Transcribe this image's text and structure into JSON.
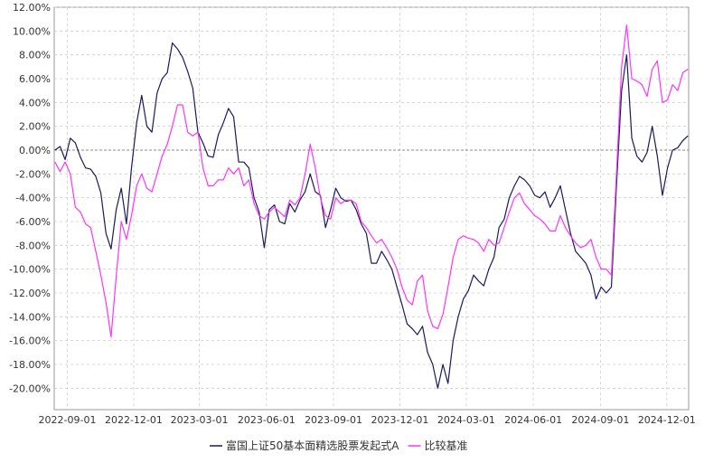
{
  "chart_data": {
    "type": "line",
    "y_ticks": [
      "12.00%",
      "10.00%",
      "8.00%",
      "6.00%",
      "4.00%",
      "2.00%",
      "0.00%",
      "-2.00%",
      "-4.00%",
      "-6.00%",
      "-8.00%",
      "-10.00%",
      "-12.00%",
      "-14.00%",
      "-16.00%",
      "-18.00%",
      "-20.00%"
    ],
    "ylim": [
      -21.8,
      12
    ],
    "x_ticks": [
      "2022-09-01",
      "2022-12-01",
      "2023-03-01",
      "2023-06-01",
      "2023-09-01",
      "2023-12-01",
      "2024-03-01",
      "2024-06-01",
      "2024-09-01",
      "2024-12-01"
    ],
    "grid": true,
    "legend_position": "bottom",
    "series": [
      {
        "name": "富国上证50基本面精选股票发起式A",
        "color": "#1a1a5e",
        "values": [
          [
            "2022-08-15",
            0
          ],
          [
            "2022-08-22",
            0.3
          ],
          [
            "2022-08-29",
            -0.8
          ],
          [
            "2022-09-05",
            1
          ],
          [
            "2022-09-12",
            0.6
          ],
          [
            "2022-09-19",
            -0.6
          ],
          [
            "2022-09-26",
            -1.5
          ],
          [
            "2022-10-03",
            -1.6
          ],
          [
            "2022-10-10",
            -2.2
          ],
          [
            "2022-10-17",
            -3.6
          ],
          [
            "2022-10-24",
            -7
          ],
          [
            "2022-10-31",
            -8.3
          ],
          [
            "2022-11-07",
            -5
          ],
          [
            "2022-11-14",
            -3.2
          ],
          [
            "2022-11-21",
            -6.2
          ],
          [
            "2022-11-28",
            -1.5
          ],
          [
            "2022-12-05",
            2.3
          ],
          [
            "2022-12-12",
            4.6
          ],
          [
            "2022-12-19",
            2
          ],
          [
            "2022-12-26",
            1.5
          ],
          [
            "2023-01-02",
            4.8
          ],
          [
            "2023-01-09",
            6
          ],
          [
            "2023-01-16",
            6.5
          ],
          [
            "2023-01-23",
            9
          ],
          [
            "2023-01-30",
            8.5
          ],
          [
            "2023-02-06",
            7.8
          ],
          [
            "2023-02-13",
            6.6
          ],
          [
            "2023-02-20",
            5.2
          ],
          [
            "2023-02-27",
            1.5
          ],
          [
            "2023-03-06",
            0.6
          ],
          [
            "2023-03-13",
            -0.5
          ],
          [
            "2023-03-20",
            -0.6
          ],
          [
            "2023-03-27",
            1.3
          ],
          [
            "2023-04-03",
            2.3
          ],
          [
            "2023-04-10",
            3.5
          ],
          [
            "2023-04-17",
            2.8
          ],
          [
            "2023-04-24",
            -1
          ],
          [
            "2023-05-01",
            -1
          ],
          [
            "2023-05-08",
            -1.5
          ],
          [
            "2023-05-15",
            -4
          ],
          [
            "2023-05-22",
            -5.2
          ],
          [
            "2023-05-29",
            -8.2
          ],
          [
            "2023-06-05",
            -5
          ],
          [
            "2023-06-12",
            -4.6
          ],
          [
            "2023-06-19",
            -6
          ],
          [
            "2023-06-26",
            -6.2
          ],
          [
            "2023-07-03",
            -4.5
          ],
          [
            "2023-07-10",
            -5.2
          ],
          [
            "2023-07-17",
            -4.2
          ],
          [
            "2023-07-24",
            -3.5
          ],
          [
            "2023-07-31",
            -2
          ],
          [
            "2023-08-07",
            -3.5
          ],
          [
            "2023-08-14",
            -3.8
          ],
          [
            "2023-08-21",
            -6.5
          ],
          [
            "2023-08-28",
            -5
          ],
          [
            "2023-09-04",
            -3.2
          ],
          [
            "2023-09-11",
            -4
          ],
          [
            "2023-09-18",
            -4.3
          ],
          [
            "2023-09-25",
            -4.2
          ],
          [
            "2023-10-02",
            -5
          ],
          [
            "2023-10-09",
            -6.2
          ],
          [
            "2023-10-16",
            -7
          ],
          [
            "2023-10-23",
            -9.5
          ],
          [
            "2023-10-30",
            -9.5
          ],
          [
            "2023-11-06",
            -8.5
          ],
          [
            "2023-11-13",
            -9.2
          ],
          [
            "2023-11-20",
            -10
          ],
          [
            "2023-11-27",
            -11.5
          ],
          [
            "2023-12-04",
            -13
          ],
          [
            "2023-12-11",
            -14.6
          ],
          [
            "2023-12-18",
            -15
          ],
          [
            "2023-12-25",
            -15.5
          ],
          [
            "2024-01-01",
            -14.8
          ],
          [
            "2024-01-08",
            -17
          ],
          [
            "2024-01-15",
            -18
          ],
          [
            "2024-01-22",
            -20
          ],
          [
            "2024-01-29",
            -18
          ],
          [
            "2024-02-05",
            -19.6
          ],
          [
            "2024-02-12",
            -16
          ],
          [
            "2024-02-19",
            -14
          ],
          [
            "2024-02-26",
            -12.5
          ],
          [
            "2024-03-04",
            -11.8
          ],
          [
            "2024-03-11",
            -10.5
          ],
          [
            "2024-03-18",
            -11
          ],
          [
            "2024-03-25",
            -11.4
          ],
          [
            "2024-04-01",
            -10
          ],
          [
            "2024-04-08",
            -9
          ],
          [
            "2024-04-15",
            -6.5
          ],
          [
            "2024-04-22",
            -5.8
          ],
          [
            "2024-04-29",
            -4
          ],
          [
            "2024-05-06",
            -3
          ],
          [
            "2024-05-13",
            -2.2
          ],
          [
            "2024-05-20",
            -2.5
          ],
          [
            "2024-05-27",
            -3
          ],
          [
            "2024-06-03",
            -3.8
          ],
          [
            "2024-06-10",
            -4
          ],
          [
            "2024-06-17",
            -3.5
          ],
          [
            "2024-06-24",
            -4.8
          ],
          [
            "2024-07-01",
            -4
          ],
          [
            "2024-07-08",
            -3
          ],
          [
            "2024-07-15",
            -5
          ],
          [
            "2024-07-22",
            -7
          ],
          [
            "2024-07-29",
            -8.5
          ],
          [
            "2024-08-05",
            -9
          ],
          [
            "2024-08-12",
            -9.5
          ],
          [
            "2024-08-19",
            -10.5
          ],
          [
            "2024-08-26",
            -12.5
          ],
          [
            "2024-09-02",
            -11.5
          ],
          [
            "2024-09-09",
            -12
          ],
          [
            "2024-09-16",
            -11.5
          ],
          [
            "2024-09-23",
            -3
          ],
          [
            "2024-09-30",
            5
          ],
          [
            "2024-10-07",
            8
          ],
          [
            "2024-10-14",
            1
          ],
          [
            "2024-10-21",
            -0.5
          ],
          [
            "2024-10-28",
            -1
          ],
          [
            "2024-11-04",
            -0.2
          ],
          [
            "2024-11-11",
            2
          ],
          [
            "2024-11-18",
            -0.5
          ],
          [
            "2024-11-25",
            -3.8
          ],
          [
            "2024-12-02",
            -1.5
          ],
          [
            "2024-12-09",
            0
          ],
          [
            "2024-12-16",
            0.2
          ],
          [
            "2024-12-23",
            0.8
          ],
          [
            "2024-12-30",
            1.2
          ]
        ]
      },
      {
        "name": "比较基准",
        "color": "#ff33ff",
        "values": [
          [
            "2022-08-15",
            -1
          ],
          [
            "2022-08-22",
            -1.8
          ],
          [
            "2022-08-29",
            -1
          ],
          [
            "2022-09-05",
            -2
          ],
          [
            "2022-09-12",
            -4.8
          ],
          [
            "2022-09-19",
            -5.2
          ],
          [
            "2022-09-26",
            -6.2
          ],
          [
            "2022-10-03",
            -6.5
          ],
          [
            "2022-10-10",
            -8.5
          ],
          [
            "2022-10-17",
            -10.5
          ],
          [
            "2022-10-24",
            -12.8
          ],
          [
            "2022-10-31",
            -15.7
          ],
          [
            "2022-11-07",
            -10.6
          ],
          [
            "2022-11-14",
            -6
          ],
          [
            "2022-11-21",
            -7.5
          ],
          [
            "2022-11-28",
            -5.5
          ],
          [
            "2022-12-05",
            -3
          ],
          [
            "2022-12-12",
            -2
          ],
          [
            "2022-12-19",
            -3.2
          ],
          [
            "2022-12-26",
            -3.5
          ],
          [
            "2023-01-02",
            -2
          ],
          [
            "2023-01-09",
            -0.5
          ],
          [
            "2023-01-16",
            0.5
          ],
          [
            "2023-01-23",
            2
          ],
          [
            "2023-01-30",
            3.8
          ],
          [
            "2023-02-06",
            3.8
          ],
          [
            "2023-02-13",
            1.5
          ],
          [
            "2023-02-20",
            1.2
          ],
          [
            "2023-02-27",
            1.5
          ],
          [
            "2023-03-06",
            -1.5
          ],
          [
            "2023-03-13",
            -3
          ],
          [
            "2023-03-20",
            -3
          ],
          [
            "2023-03-27",
            -2.5
          ],
          [
            "2023-04-03",
            -2.5
          ],
          [
            "2023-04-10",
            -1.5
          ],
          [
            "2023-04-17",
            -2
          ],
          [
            "2023-04-24",
            -1.5
          ],
          [
            "2023-05-01",
            -3
          ],
          [
            "2023-05-08",
            -2.5
          ],
          [
            "2023-05-15",
            -4.5
          ],
          [
            "2023-05-22",
            -5.5
          ],
          [
            "2023-05-29",
            -5.8
          ],
          [
            "2023-06-05",
            -5.2
          ],
          [
            "2023-06-12",
            -4.8
          ],
          [
            "2023-06-19",
            -5.2
          ],
          [
            "2023-06-26",
            -5.6
          ],
          [
            "2023-07-03",
            -4.2
          ],
          [
            "2023-07-10",
            -4.6
          ],
          [
            "2023-07-17",
            -4
          ],
          [
            "2023-07-24",
            -2
          ],
          [
            "2023-07-31",
            0.5
          ],
          [
            "2023-08-07",
            -1.5
          ],
          [
            "2023-08-14",
            -4
          ],
          [
            "2023-08-21",
            -5.5
          ],
          [
            "2023-08-28",
            -5.8
          ],
          [
            "2023-09-04",
            -4
          ],
          [
            "2023-09-11",
            -4.5
          ],
          [
            "2023-09-18",
            -4.2
          ],
          [
            "2023-09-25",
            -4.2
          ],
          [
            "2023-10-02",
            -4.5
          ],
          [
            "2023-10-09",
            -6
          ],
          [
            "2023-10-16",
            -6.5
          ],
          [
            "2023-10-23",
            -7.2
          ],
          [
            "2023-10-30",
            -7.8
          ],
          [
            "2023-11-06",
            -7.5
          ],
          [
            "2023-11-13",
            -8.2
          ],
          [
            "2023-11-20",
            -9
          ],
          [
            "2023-11-27",
            -10
          ],
          [
            "2023-12-04",
            -11.5
          ],
          [
            "2023-12-11",
            -12.6
          ],
          [
            "2023-12-18",
            -13
          ],
          [
            "2023-12-25",
            -11
          ],
          [
            "2024-01-01",
            -10.5
          ],
          [
            "2024-01-08",
            -13.5
          ],
          [
            "2024-01-15",
            -14.8
          ],
          [
            "2024-01-22",
            -15
          ],
          [
            "2024-01-29",
            -13.8
          ],
          [
            "2024-02-05",
            -11.5
          ],
          [
            "2024-02-12",
            -9
          ],
          [
            "2024-02-19",
            -7.5
          ],
          [
            "2024-02-26",
            -7.2
          ],
          [
            "2024-03-04",
            -7.4
          ],
          [
            "2024-03-11",
            -7.5
          ],
          [
            "2024-03-18",
            -7.8
          ],
          [
            "2024-03-25",
            -8.5
          ],
          [
            "2024-04-01",
            -7.5
          ],
          [
            "2024-04-08",
            -8
          ],
          [
            "2024-04-15",
            -7.8
          ],
          [
            "2024-04-22",
            -6.5
          ],
          [
            "2024-04-29",
            -5.2
          ],
          [
            "2024-05-06",
            -4
          ],
          [
            "2024-05-13",
            -3.6
          ],
          [
            "2024-05-20",
            -4.5
          ],
          [
            "2024-05-27",
            -5
          ],
          [
            "2024-06-03",
            -5.5
          ],
          [
            "2024-06-10",
            -5.8
          ],
          [
            "2024-06-17",
            -6.2
          ],
          [
            "2024-06-24",
            -6.8
          ],
          [
            "2024-07-01",
            -6.8
          ],
          [
            "2024-07-08",
            -5.5
          ],
          [
            "2024-07-15",
            -6.5
          ],
          [
            "2024-07-22",
            -7.2
          ],
          [
            "2024-07-29",
            -7.8
          ],
          [
            "2024-08-05",
            -8.2
          ],
          [
            "2024-08-12",
            -8
          ],
          [
            "2024-08-19",
            -7.5
          ],
          [
            "2024-08-26",
            -9
          ],
          [
            "2024-09-02",
            -10
          ],
          [
            "2024-09-09",
            -10
          ],
          [
            "2024-09-16",
            -10.5
          ],
          [
            "2024-09-23",
            -2
          ],
          [
            "2024-09-30",
            7
          ],
          [
            "2024-10-07",
            10.5
          ],
          [
            "2024-10-14",
            6
          ],
          [
            "2024-10-21",
            5.8
          ],
          [
            "2024-10-28",
            5.5
          ],
          [
            "2024-11-04",
            4.5
          ],
          [
            "2024-11-11",
            6.8
          ],
          [
            "2024-11-18",
            7.5
          ],
          [
            "2024-11-25",
            4
          ],
          [
            "2024-12-02",
            4.2
          ],
          [
            "2024-12-09",
            5.5
          ],
          [
            "2024-12-16",
            5
          ],
          [
            "2024-12-23",
            6.5
          ],
          [
            "2024-12-30",
            6.8
          ]
        ]
      }
    ]
  }
}
